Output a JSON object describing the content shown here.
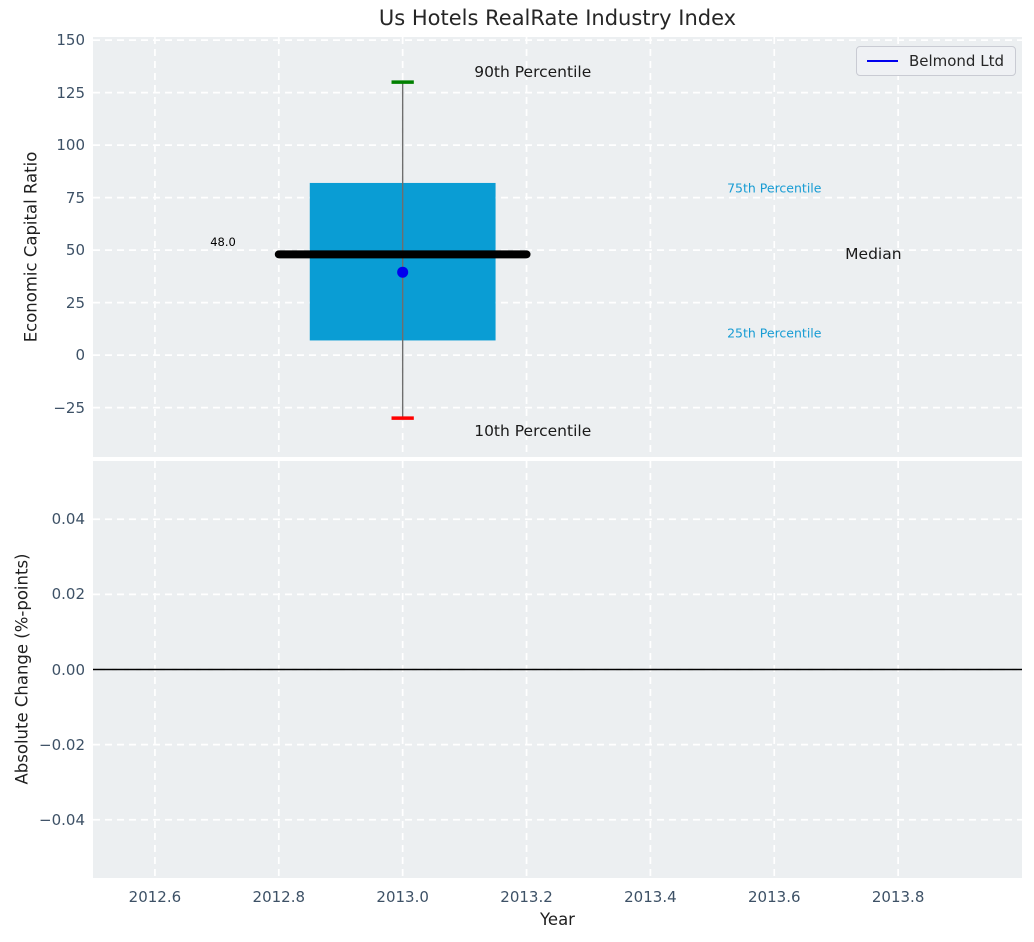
{
  "title": "Us Hotels RealRate Industry Index",
  "legend": {
    "label": "Belmond Ltd",
    "line_color": "#0000ee"
  },
  "colors": {
    "figure_bg": "#ffffff",
    "plot_bg": "#eceff1",
    "grid": "#ffffff",
    "tick_label": "#3d5166",
    "axis_label": "#1f1f1f",
    "box_fill": "#0a9dd4",
    "median_line": "#000000",
    "whisker": "#6e6e6e",
    "cap_high": "#008000",
    "cap_low": "#ff0000",
    "point": "#0000ee",
    "zero_line": "#000000",
    "percentile_label": "#179cd4"
  },
  "chart_data": [
    {
      "type": "box",
      "title": "Us Hotels RealRate Industry Index",
      "xlabel": "Year",
      "ylabel": "Economic Capital Ratio",
      "xlim": [
        2012.5,
        2014.0
      ],
      "ylim": [
        -48.5,
        151.5
      ],
      "grid": true,
      "x_ticks": [
        {
          "v": 2012.6,
          "label": "2012.6"
        },
        {
          "v": 2012.8,
          "label": "2012.8"
        },
        {
          "v": 2013.0,
          "label": "2013.0"
        },
        {
          "v": 2013.2,
          "label": "2013.2"
        },
        {
          "v": 2013.4,
          "label": "2013.4"
        },
        {
          "v": 2013.6,
          "label": "2013.6"
        },
        {
          "v": 2013.8,
          "label": "2013.8"
        }
      ],
      "y_ticks": [
        {
          "v": 150,
          "label": "150"
        },
        {
          "v": 125,
          "label": "125"
        },
        {
          "v": 100,
          "label": "100"
        },
        {
          "v": 75,
          "label": "75"
        },
        {
          "v": 50,
          "label": "50"
        },
        {
          "v": 25,
          "label": "25"
        },
        {
          "v": 0,
          "label": "0"
        },
        {
          "v": -25,
          "label": "−25"
        }
      ],
      "box": {
        "x": 2013.0,
        "p10": -30,
        "p25": 7,
        "median": 48.0,
        "p75": 82,
        "p90": 130,
        "box_halfwidth": 0.15,
        "median_halfwidth": 0.2,
        "cap_halfwidth": 0.018
      },
      "series": [
        {
          "name": "Belmond Ltd",
          "points": [
            [
              2013.0,
              39.5
            ]
          ],
          "color": "#0000ee"
        }
      ],
      "annotations": [
        {
          "text": "90th Percentile",
          "x": 2013.21,
          "y": 135,
          "color": "#1a1a1a",
          "size": 15.5
        },
        {
          "text": "75th Percentile",
          "x": 2013.6,
          "y": 79.5,
          "color": "#179cd4",
          "size": 12.5
        },
        {
          "text": "Median",
          "x": 2013.76,
          "y": 48,
          "color": "#1a1a1a",
          "size": 15.5
        },
        {
          "text": "25th Percentile",
          "x": 2013.6,
          "y": 10.5,
          "color": "#179cd4",
          "size": 12.5
        },
        {
          "text": "10th Percentile",
          "x": 2013.21,
          "y": -36,
          "color": "#1a1a1a",
          "size": 15.5
        },
        {
          "text": "48.0",
          "x": 2012.71,
          "y": 54,
          "color": "#000000",
          "size": 11.5
        }
      ],
      "legend": {
        "label": "Belmond Ltd",
        "position": "upper right"
      }
    },
    {
      "type": "line",
      "xlabel": "Year",
      "ylabel": "Absolute Change (%-points)",
      "xlim": [
        2012.5,
        2014.0
      ],
      "ylim": [
        -0.0555,
        0.0555
      ],
      "grid": true,
      "zero_line": 0.0,
      "x_ticks": [
        {
          "v": 2012.6,
          "label": "2012.6"
        },
        {
          "v": 2012.8,
          "label": "2012.8"
        },
        {
          "v": 2013.0,
          "label": "2013.0"
        },
        {
          "v": 2013.2,
          "label": "2013.2"
        },
        {
          "v": 2013.4,
          "label": "2013.4"
        },
        {
          "v": 2013.6,
          "label": "2013.6"
        },
        {
          "v": 2013.8,
          "label": "2013.8"
        }
      ],
      "y_ticks": [
        {
          "v": 0.04,
          "label": "0.04"
        },
        {
          "v": 0.02,
          "label": "0.02"
        },
        {
          "v": 0.0,
          "label": "0.00"
        },
        {
          "v": -0.02,
          "label": "−0.02"
        },
        {
          "v": -0.04,
          "label": "−0.04"
        }
      ],
      "series": []
    }
  ]
}
